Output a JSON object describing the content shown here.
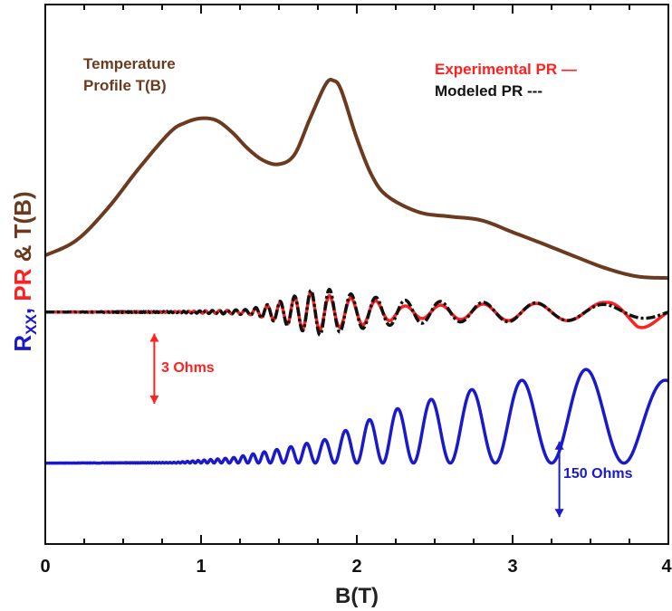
{
  "chart_data": {
    "type": "line",
    "title": "",
    "xlabel": "B(T)",
    "ylabel_parts": [
      {
        "text": "R",
        "color": "#1a1acc"
      },
      {
        "text": "XX",
        "color": "#1a1acc",
        "sub": true
      },
      {
        "text": ", ",
        "color": "#1a1acc"
      },
      {
        "text": "PR",
        "color": "#ff2020"
      },
      {
        "text": " & ",
        "color": "#6b3a1f"
      },
      {
        "text": "T(B)",
        "color": "#6b3a1f"
      }
    ],
    "xlim": [
      0,
      4
    ],
    "xticks": [
      0,
      1,
      2,
      3,
      4
    ],
    "ylim": [
      0,
      100
    ],
    "grid": false,
    "legend": "top-right",
    "series": [
      {
        "name": "Temperature Profile T(B)",
        "color": "#6b3a1f",
        "style": "solid",
        "x": [
          0,
          0.2,
          0.4,
          0.6,
          0.8,
          0.9,
          1.0,
          1.1,
          1.2,
          1.3,
          1.4,
          1.5,
          1.6,
          1.7,
          1.8,
          1.85,
          1.9,
          2.0,
          2.1,
          2.2,
          2.4,
          2.6,
          2.8,
          3.0,
          3.2,
          3.4,
          3.6,
          3.8,
          4.0
        ],
        "y": [
          53.5,
          56.3,
          62.2,
          69.6,
          76.3,
          78.1,
          78.9,
          78.5,
          76.3,
          73.3,
          71.1,
          70.4,
          72.2,
          78.9,
          85.2,
          85.9,
          84.1,
          75.2,
          68.1,
          64.4,
          61.5,
          60.7,
          60.0,
          57.8,
          55.6,
          53.3,
          51.1,
          49.6,
          49.3
        ]
      },
      {
        "name": "Experimental PR",
        "label": "Experimental PR —",
        "color": "#ff2020",
        "style": "solid",
        "osc": {
          "base": 43,
          "floor": 0.6,
          "steps": [
            [
              0.85,
              0.03
            ],
            [
              1.3,
              0.1
            ],
            [
              1.5,
              0.42
            ],
            [
              1.6,
              0.7
            ],
            [
              1.7,
              0.9
            ],
            [
              1.8,
              0.78
            ],
            [
              2.1,
              0.55
            ],
            [
              2.3,
              0.28
            ],
            [
              2.7,
              0.35
            ],
            [
              3.0,
              0.4
            ],
            [
              3.4,
              0.4
            ],
            [
              3.6,
              0.45
            ],
            [
              3.8,
              0.8
            ],
            [
              4.0,
              0.4
            ]
          ]
        }
      },
      {
        "name": "Modeled PR",
        "label": "Modeled PR ---",
        "color": "#111111",
        "style": "dashdot",
        "osc": {
          "base": 43,
          "floor": 0.6,
          "steps": [
            [
              0.85,
              0.03
            ],
            [
              1.3,
              0.12
            ],
            [
              1.5,
              0.48
            ],
            [
              1.7,
              1.0
            ],
            [
              1.8,
              1.1
            ],
            [
              1.9,
              0.9
            ],
            [
              2.1,
              0.7
            ],
            [
              2.3,
              0.55
            ],
            [
              2.7,
              0.45
            ],
            [
              3.0,
              0.45
            ],
            [
              3.3,
              0.4
            ],
            [
              3.6,
              0.35
            ],
            [
              4.0,
              0.25
            ]
          ]
        }
      },
      {
        "name": "Rxx",
        "color": "#1a1acc",
        "style": "solid",
        "osc": {
          "base": 15,
          "floor": 0.75,
          "steps": [
            [
              0.85,
              0.05
            ],
            [
              1.2,
              0.25
            ],
            [
              1.5,
              0.65
            ],
            [
              1.8,
              1.1
            ],
            [
              2.2,
              2.4
            ],
            [
              2.6,
              3.2
            ],
            [
              3.0,
              3.8
            ],
            [
              3.3,
              4.0
            ],
            [
              3.6,
              4.6
            ],
            [
              3.8,
              4.6
            ],
            [
              4.0,
              3.8
            ]
          ]
        }
      }
    ],
    "annotations": [
      {
        "name": "temperature-profile-label",
        "lines": [
          "Temperature",
          "Profile T(B)"
        ],
        "color": "#6b3a1f",
        "x": 0.25,
        "y": 88
      },
      {
        "name": "three-ohms-label",
        "text": "3 Ohms",
        "color": "#ff2020",
        "x": 0.75,
        "y": 32
      },
      {
        "name": "hundred-fifty-ohms-label",
        "text": "150 Ohms",
        "color": "#1a1acc",
        "x": 3.33,
        "y": 11
      }
    ],
    "scale_bars": [
      {
        "name": "three-ohms-scale-bar",
        "color": "#ff2020",
        "x": 0.7,
        "y0": 26,
        "y1": 39
      },
      {
        "name": "hundred-fifty-ohms-scale-bar",
        "color": "#1a1acc",
        "x": 3.3,
        "y0": 5,
        "y1": 19
      }
    ]
  }
}
